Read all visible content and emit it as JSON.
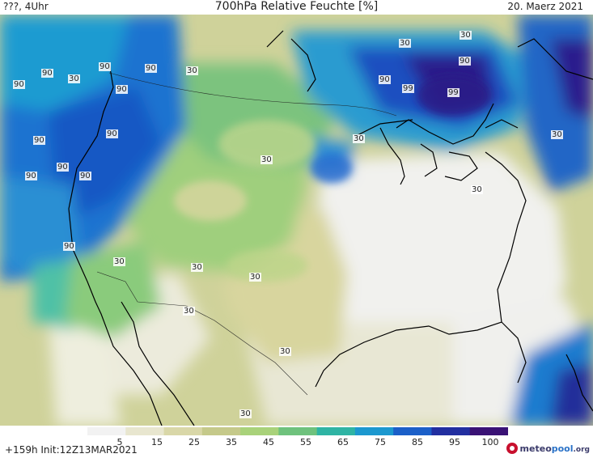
{
  "header": {
    "left": "???, 4Uhr",
    "title": "700hPa Relative Feuchte [%]",
    "date": "20. Maerz 2021"
  },
  "colorbar": {
    "ticks": [
      "5",
      "15",
      "25",
      "35",
      "45",
      "55",
      "65",
      "75",
      "85",
      "95",
      "100"
    ],
    "colors": [
      "#f2f2f2",
      "#e8e6cf",
      "#d9d7a8",
      "#c5c98a",
      "#a9d27a",
      "#6fc27d",
      "#2fb4a4",
      "#1c98cf",
      "#1b5fc8",
      "#222fa0",
      "#3a1275"
    ]
  },
  "footer": {
    "run": "+159h Init:12Z13MAR2021"
  },
  "logo": {
    "part1": "meteo",
    "part2": "pool",
    "part3": ".org"
  },
  "contour_labels": [
    {
      "text": "90"
    },
    {
      "text": "90"
    },
    {
      "text": "90"
    },
    {
      "text": "90"
    },
    {
      "text": "90"
    },
    {
      "text": "90"
    },
    {
      "text": "90"
    },
    {
      "text": "90"
    },
    {
      "text": "90"
    },
    {
      "text": "90"
    },
    {
      "text": "90"
    },
    {
      "text": "90"
    },
    {
      "text": "99"
    },
    {
      "text": "99"
    },
    {
      "text": "90"
    },
    {
      "text": "30"
    },
    {
      "text": "30"
    },
    {
      "text": "30"
    },
    {
      "text": "30"
    },
    {
      "text": "30"
    },
    {
      "text": "30"
    },
    {
      "text": "30"
    },
    {
      "text": "30"
    },
    {
      "text": "30"
    },
    {
      "text": "30"
    },
    {
      "text": "30"
    },
    {
      "text": "30"
    },
    {
      "text": "30"
    },
    {
      "text": "30"
    }
  ]
}
